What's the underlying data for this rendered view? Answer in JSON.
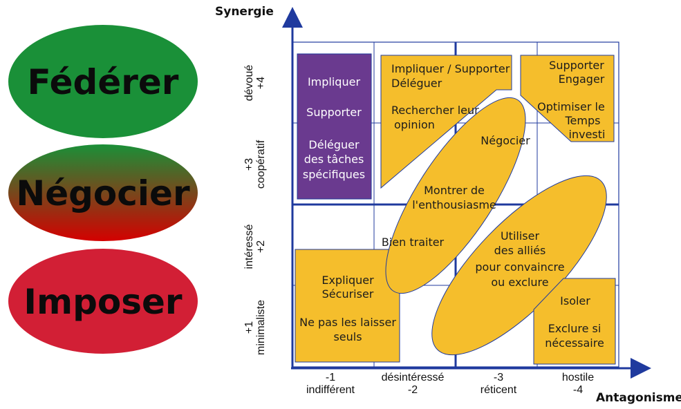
{
  "colors": {
    "grid": "#1f3a9e",
    "axis": "#1f3a9e",
    "box_fill": "#f5be2c",
    "box_stroke": "#1f3a9e",
    "purple": "#6a3a8f",
    "green": "#1a9038",
    "red": "#d21f35",
    "dark_red": "#b00000"
  },
  "strategies": {
    "federer": "Fédérer",
    "negocier": "Négocier",
    "imposer": "Imposer"
  },
  "axes": {
    "y_title": "Synergie",
    "x_title": "Antagonisme",
    "y_ticks": [
      {
        "line1": "+1",
        "line2": "minimaliste"
      },
      {
        "line1": "intéressé",
        "line2": "+2"
      },
      {
        "line1": "+3",
        "line2": "coopératif"
      },
      {
        "line1": "dévoué",
        "line2": "+4"
      }
    ],
    "x_ticks": [
      {
        "line1": "-1",
        "line2": "indifférent"
      },
      {
        "line1": "désintéressé",
        "line2": "-2"
      },
      {
        "line1": "-3",
        "line2": "réticent"
      },
      {
        "line1": "hostile",
        "line2": "-4"
      }
    ]
  },
  "boxes": {
    "purple": [
      "Impliquer",
      "Supporter",
      "Déléguer",
      "des tâches",
      "spécifiques"
    ],
    "top_center": [
      "Impliquer / Supporter",
      "Déléguer",
      "Rechercher leur",
      "opinion"
    ],
    "top_right": [
      "Supporter",
      "Engager",
      "Optimiser le",
      "Temps",
      "investi"
    ],
    "ellipse1": [
      "Négocier",
      "Montrer de",
      "l'enthousiasme",
      "Bien traiter"
    ],
    "ellipse2": [
      "Utiliser",
      "des alliés",
      "pour convaincre",
      "ou exclure"
    ],
    "bottom_left": [
      "Expliquer",
      "Sécuriser",
      "Ne pas les laisser",
      "seuls"
    ],
    "bottom_right": [
      "Isoler",
      "Exclure si",
      "nécessaire"
    ]
  }
}
